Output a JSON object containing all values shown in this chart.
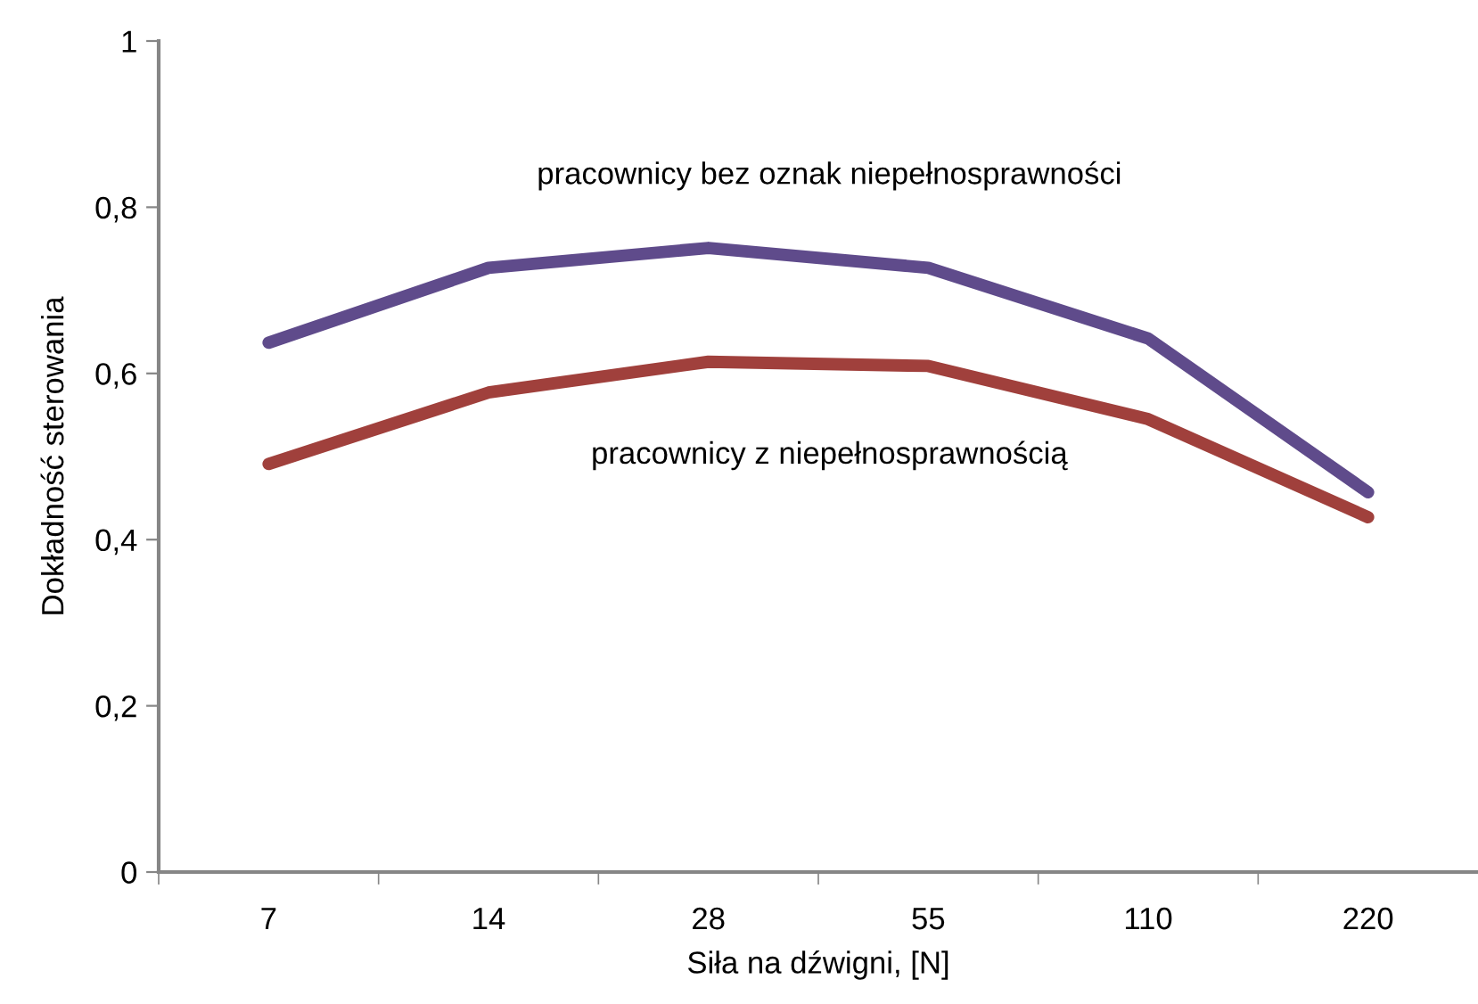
{
  "chart_data": {
    "type": "line",
    "xlabel": "Siła na dźwigni, [N]",
    "ylabel": "Dokładność sterowania",
    "categories": [
      "7",
      "14",
      "28",
      "55",
      "110",
      "220"
    ],
    "series": [
      {
        "name": "pracownicy bez oznak niepełnosprawności",
        "color": "#5f4b8b",
        "values": [
          0.637,
          0.727,
          0.751,
          0.727,
          0.642,
          0.457
        ]
      },
      {
        "name": "pracownicy z niepełnosprawnością",
        "color": "#a0403c",
        "values": [
          0.491,
          0.577,
          0.614,
          0.609,
          0.545,
          0.427
        ]
      }
    ],
    "ylim": [
      0,
      1
    ],
    "yticks": [
      0,
      {
        "value": 0.2,
        "label": "0,2"
      },
      {
        "value": 0.4,
        "label": "0,4"
      },
      {
        "value": 0.6,
        "label": "0,6"
      },
      {
        "value": 0.8,
        "label": "0,8"
      },
      1
    ],
    "grid": false,
    "legend": false,
    "marker": "none",
    "line_style": "solid"
  }
}
